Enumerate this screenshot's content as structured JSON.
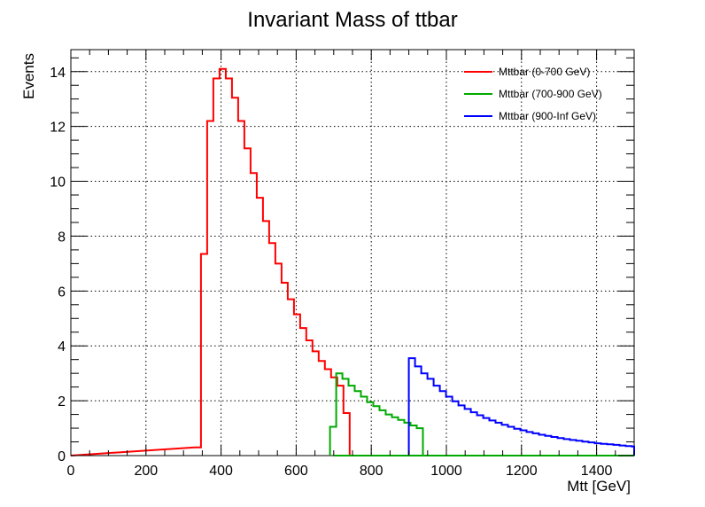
{
  "chart_data": {
    "type": "line",
    "title": "Invariant Mass of ttbar",
    "xlabel": "Mtt [GeV]",
    "ylabel": "Events",
    "xlim": [
      0,
      1500
    ],
    "ylim": [
      0,
      14.8
    ],
    "grid": true,
    "legend_position": "top-right",
    "x_ticks": [
      0,
      200,
      400,
      600,
      800,
      1000,
      1200,
      1400
    ],
    "y_ticks": [
      0,
      2,
      4,
      6,
      8,
      10,
      12,
      14
    ],
    "bin_width": 16.5,
    "series": [
      {
        "name": "Mttbar (0-700 GeV)",
        "color": "#ff0000",
        "x_start": 330,
        "values": [
          0.3,
          7.35,
          12.2,
          13.75,
          14.1,
          13.75,
          13.05,
          12.2,
          11.2,
          10.3,
          9.4,
          8.55,
          7.75,
          7.0,
          6.3,
          5.7,
          5.15,
          4.65,
          4.2,
          3.8,
          3.45,
          3.15,
          2.85,
          2.55,
          1.55
        ]
      },
      {
        "name": "Mttbar (700-900 GeV)",
        "color": "#00aa00",
        "x_start": 690,
        "values": [
          1.05,
          3.0,
          2.8,
          2.55,
          2.35,
          2.15,
          1.95,
          1.8,
          1.65,
          1.5,
          1.4,
          1.3,
          1.2,
          1.1,
          1.0
        ]
      },
      {
        "name": "Mttbar (900-Inf GeV)",
        "color": "#0000ff",
        "x_start": 900,
        "values": [
          3.55,
          3.25,
          3.0,
          2.8,
          2.55,
          2.35,
          2.15,
          1.98,
          1.83,
          1.7,
          1.58,
          1.47,
          1.37,
          1.28,
          1.2,
          1.12,
          1.05,
          0.98,
          0.92,
          0.86,
          0.81,
          0.76,
          0.72,
          0.68,
          0.64,
          0.6,
          0.57,
          0.54,
          0.51,
          0.48,
          0.45,
          0.43,
          0.41,
          0.39,
          0.37,
          0.35,
          0.33
        ]
      }
    ]
  }
}
